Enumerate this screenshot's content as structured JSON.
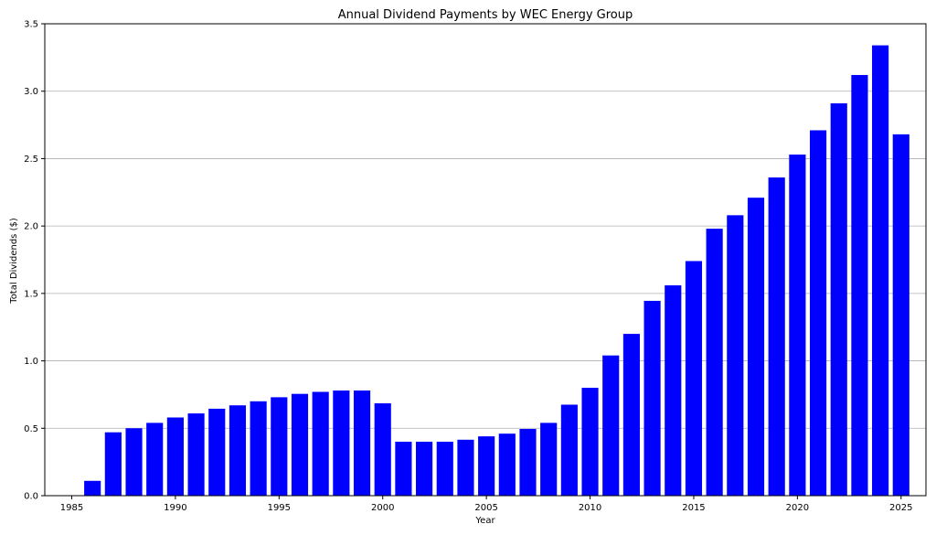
{
  "chart_data": {
    "type": "bar",
    "title": "Annual Dividend Payments by WEC Energy Group",
    "xlabel": "Year",
    "ylabel": "Total Dividends ($)",
    "x": [
      1986,
      1987,
      1988,
      1989,
      1990,
      1991,
      1992,
      1993,
      1994,
      1995,
      1996,
      1997,
      1998,
      1999,
      2000,
      2001,
      2002,
      2003,
      2004,
      2005,
      2006,
      2007,
      2008,
      2009,
      2010,
      2011,
      2012,
      2013,
      2014,
      2015,
      2016,
      2017,
      2018,
      2019,
      2020,
      2021,
      2022,
      2023,
      2024,
      2025
    ],
    "values": [
      0.11,
      0.47,
      0.5,
      0.54,
      0.58,
      0.61,
      0.645,
      0.67,
      0.7,
      0.73,
      0.755,
      0.77,
      0.78,
      0.78,
      0.685,
      0.4,
      0.4,
      0.4,
      0.415,
      0.44,
      0.46,
      0.495,
      0.54,
      0.675,
      0.8,
      1.04,
      1.2,
      1.445,
      1.56,
      1.74,
      1.98,
      2.08,
      2.21,
      2.36,
      2.53,
      2.71,
      2.91,
      3.12,
      3.34,
      2.68
    ],
    "xlim": [
      1983.7,
      2026.2
    ],
    "ylim": [
      0,
      3.5
    ],
    "xticks": [
      "1985",
      "1990",
      "1995",
      "2000",
      "2005",
      "2010",
      "2015",
      "2020",
      "2025"
    ],
    "yticks": [
      "0.0",
      "0.5",
      "1.0",
      "1.5",
      "2.0",
      "2.5",
      "3.0",
      "3.5"
    ],
    "grid": "y",
    "bar_color": "#0000ff"
  }
}
